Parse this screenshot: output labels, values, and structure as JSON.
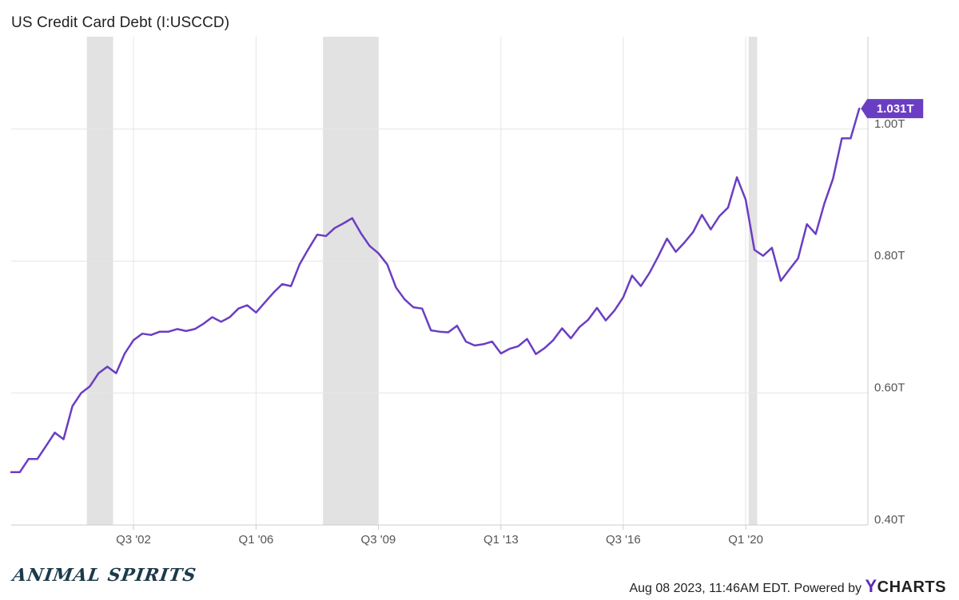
{
  "chart_data": {
    "type": "line",
    "title": "US Credit Card Debt (I:USCCD)",
    "x_range": [
      "1999-01-01",
      "2023-06-30"
    ],
    "ylim": [
      0.4,
      1.14
    ],
    "y_ticks": [
      {
        "value": 0.4,
        "label": "0.40T"
      },
      {
        "value": 0.6,
        "label": "0.60T"
      },
      {
        "value": 0.8,
        "label": "0.80T"
      },
      {
        "value": 1.0,
        "label": "1.00T"
      }
    ],
    "x_ticks": [
      {
        "date": "2002-07-01",
        "label": "Q3 '02"
      },
      {
        "date": "2006-01-01",
        "label": "Q1 '06"
      },
      {
        "date": "2009-07-01",
        "label": "Q3 '09"
      },
      {
        "date": "2013-01-01",
        "label": "Q1 '13"
      },
      {
        "date": "2016-07-01",
        "label": "Q3 '16"
      },
      {
        "date": "2020-01-01",
        "label": "Q1 '20"
      }
    ],
    "recessions": [
      {
        "start": "2001-03-01",
        "end": "2001-11-30"
      },
      {
        "start": "2007-12-01",
        "end": "2009-06-30"
      },
      {
        "start": "2020-02-01",
        "end": "2020-04-30"
      }
    ],
    "grid": true,
    "series": [
      {
        "color": "#6a3ec2",
        "last_label": "1.031T",
        "points": [
          [
            "1999-01-01",
            0.48
          ],
          [
            "1999-04-01",
            0.48
          ],
          [
            "1999-07-01",
            0.5
          ],
          [
            "1999-10-01",
            0.5
          ],
          [
            "2000-01-01",
            0.52
          ],
          [
            "2000-04-01",
            0.54
          ],
          [
            "2000-07-01",
            0.53
          ],
          [
            "2000-10-01",
            0.58
          ],
          [
            "2001-01-01",
            0.6
          ],
          [
            "2001-04-01",
            0.61
          ],
          [
            "2001-07-01",
            0.63
          ],
          [
            "2001-10-01",
            0.64
          ],
          [
            "2002-01-01",
            0.63
          ],
          [
            "2002-04-01",
            0.66
          ],
          [
            "2002-07-01",
            0.68
          ],
          [
            "2002-10-01",
            0.69
          ],
          [
            "2003-01-01",
            0.688
          ],
          [
            "2003-04-01",
            0.693
          ],
          [
            "2003-07-01",
            0.693
          ],
          [
            "2003-10-01",
            0.697
          ],
          [
            "2004-01-01",
            0.694
          ],
          [
            "2004-04-01",
            0.697
          ],
          [
            "2004-07-01",
            0.705
          ],
          [
            "2004-10-01",
            0.715
          ],
          [
            "2005-01-01",
            0.708
          ],
          [
            "2005-04-01",
            0.715
          ],
          [
            "2005-07-01",
            0.728
          ],
          [
            "2005-10-01",
            0.733
          ],
          [
            "2006-01-01",
            0.722
          ],
          [
            "2006-04-01",
            0.737
          ],
          [
            "2006-07-01",
            0.752
          ],
          [
            "2006-10-01",
            0.765
          ],
          [
            "2007-01-01",
            0.762
          ],
          [
            "2007-04-01",
            0.795
          ],
          [
            "2007-07-01",
            0.818
          ],
          [
            "2007-10-01",
            0.84
          ],
          [
            "2008-01-01",
            0.838
          ],
          [
            "2008-04-01",
            0.85
          ],
          [
            "2008-07-01",
            0.857
          ],
          [
            "2008-10-01",
            0.865
          ],
          [
            "2009-01-01",
            0.842
          ],
          [
            "2009-04-01",
            0.823
          ],
          [
            "2009-07-01",
            0.812
          ],
          [
            "2009-10-01",
            0.795
          ],
          [
            "2010-01-01",
            0.76
          ],
          [
            "2010-04-01",
            0.742
          ],
          [
            "2010-07-01",
            0.73
          ],
          [
            "2010-10-01",
            0.728
          ],
          [
            "2011-01-01",
            0.695
          ],
          [
            "2011-04-01",
            0.693
          ],
          [
            "2011-07-01",
            0.692
          ],
          [
            "2011-10-01",
            0.702
          ],
          [
            "2012-01-01",
            0.678
          ],
          [
            "2012-04-01",
            0.672
          ],
          [
            "2012-07-01",
            0.674
          ],
          [
            "2012-10-01",
            0.678
          ],
          [
            "2013-01-01",
            0.66
          ],
          [
            "2013-04-01",
            0.667
          ],
          [
            "2013-07-01",
            0.671
          ],
          [
            "2013-10-01",
            0.682
          ],
          [
            "2014-01-01",
            0.659
          ],
          [
            "2014-04-01",
            0.668
          ],
          [
            "2014-07-01",
            0.68
          ],
          [
            "2014-10-01",
            0.698
          ],
          [
            "2015-01-01",
            0.683
          ],
          [
            "2015-04-01",
            0.7
          ],
          [
            "2015-07-01",
            0.711
          ],
          [
            "2015-10-01",
            0.729
          ],
          [
            "2016-01-01",
            0.71
          ],
          [
            "2016-04-01",
            0.725
          ],
          [
            "2016-07-01",
            0.745
          ],
          [
            "2016-10-01",
            0.778
          ],
          [
            "2017-01-01",
            0.762
          ],
          [
            "2017-04-01",
            0.782
          ],
          [
            "2017-07-01",
            0.807
          ],
          [
            "2017-10-01",
            0.834
          ],
          [
            "2018-01-01",
            0.814
          ],
          [
            "2018-04-01",
            0.828
          ],
          [
            "2018-07-01",
            0.844
          ],
          [
            "2018-10-01",
            0.87
          ],
          [
            "2019-01-01",
            0.848
          ],
          [
            "2019-04-01",
            0.868
          ],
          [
            "2019-07-01",
            0.881
          ],
          [
            "2019-10-01",
            0.927
          ],
          [
            "2020-01-01",
            0.893
          ],
          [
            "2020-04-01",
            0.817
          ],
          [
            "2020-07-01",
            0.808
          ],
          [
            "2020-10-01",
            0.82
          ],
          [
            "2021-01-01",
            0.77
          ],
          [
            "2021-04-01",
            0.787
          ],
          [
            "2021-07-01",
            0.804
          ],
          [
            "2021-10-01",
            0.856
          ],
          [
            "2022-01-01",
            0.841
          ],
          [
            "2022-04-01",
            0.887
          ],
          [
            "2022-07-01",
            0.925
          ],
          [
            "2022-10-01",
            0.986
          ],
          [
            "2023-01-01",
            0.986
          ],
          [
            "2023-04-01",
            1.031
          ]
        ]
      }
    ]
  },
  "footer": {
    "logo_text": "ANIMAL SPIRITS",
    "credit_prefix": "Aug 08 2023, 11:46AM EDT. Powered by ",
    "brand_y": "Y",
    "brand_rest": "CHARTS"
  },
  "colors": {
    "recession": "#e2e2e2",
    "grid": "#e6e6e6",
    "axis": "#cccccc",
    "tick_text": "#555555",
    "label_bg": "#6a3ec2"
  }
}
